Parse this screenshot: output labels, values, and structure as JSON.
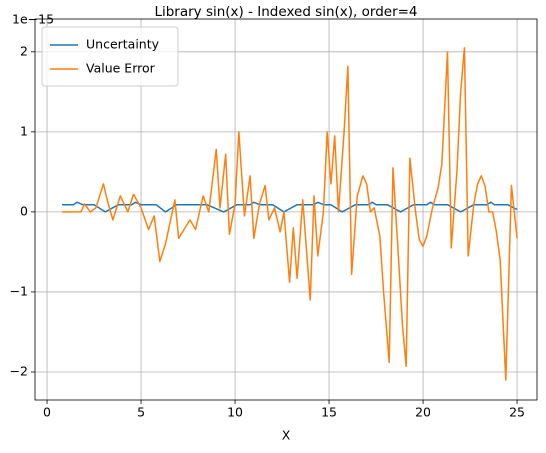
{
  "chart_data": {
    "type": "line",
    "title": "Library sin(x) - Indexed sin(x), order=4",
    "x_label": "X",
    "y_offset_text": "1e−15",
    "xlim": [
      -0.64,
      26.06
    ],
    "ylim": [
      -2.35,
      2.41
    ],
    "xticks": [
      0,
      5,
      10,
      15,
      20,
      25
    ],
    "yticks": [
      {
        "value": -2,
        "label": "−2"
      },
      {
        "value": -1,
        "label": "−1"
      },
      0,
      1,
      2
    ],
    "grid": true,
    "legend": "upper left",
    "series": [
      {
        "name": "Uncertainty",
        "color": "#1f77b4",
        "x": [
          0.8,
          1.4,
          1.6,
          1.9,
          2.5,
          3.1,
          3.8,
          4.5,
          4.7,
          5.0,
          5.8,
          6.3,
          6.9,
          7.6,
          7.9,
          8.5,
          9.4,
          10.1,
          10.8,
          11.0,
          11.3,
          12.0,
          12.6,
          13.3,
          14.2,
          14.4,
          14.7,
          15.1,
          15.7,
          16.4,
          17.1,
          17.3,
          17.5,
          18.1,
          18.8,
          19.5,
          20.2,
          20.4,
          20.6,
          21.3,
          22.0,
          22.7,
          23.4,
          23.6,
          23.8,
          24.5,
          25.0
        ],
        "values": [
          0.09,
          0.09,
          0.12,
          0.09,
          0.09,
          0.0,
          0.09,
          0.09,
          0.12,
          0.09,
          0.09,
          0.0,
          0.09,
          0.09,
          0.09,
          0.09,
          0.0,
          0.09,
          0.09,
          0.12,
          0.09,
          0.09,
          0.0,
          0.09,
          0.09,
          0.12,
          0.09,
          0.09,
          0.0,
          0.09,
          0.09,
          0.12,
          0.09,
          0.09,
          0.0,
          0.09,
          0.09,
          0.12,
          0.09,
          0.09,
          0.0,
          0.09,
          0.09,
          0.12,
          0.09,
          0.09,
          0.03
        ]
      },
      {
        "name": "Value Error",
        "color": "#ff7f0e",
        "x": [
          0.8,
          1.2,
          1.5,
          1.8,
          2.0,
          2.3,
          2.6,
          3.0,
          3.2,
          3.5,
          3.9,
          4.3,
          4.6,
          5.0,
          5.4,
          5.7,
          6.0,
          6.3,
          6.8,
          7.0,
          7.6,
          7.9,
          8.3,
          8.6,
          9.0,
          9.2,
          9.5,
          9.7,
          10.0,
          10.2,
          10.5,
          10.8,
          11.0,
          11.3,
          11.6,
          11.8,
          12.1,
          12.4,
          12.6,
          12.9,
          13.1,
          13.3,
          13.6,
          14.0,
          14.2,
          14.4,
          14.7,
          14.9,
          15.1,
          15.3,
          15.5,
          15.8,
          16.0,
          16.2,
          16.5,
          16.8,
          17.0,
          17.2,
          17.4,
          17.7,
          17.9,
          18.2,
          18.4,
          18.7,
          18.9,
          19.1,
          19.3,
          19.6,
          19.8,
          20.0,
          20.2,
          20.5,
          20.8,
          21.0,
          21.3,
          21.5,
          21.8,
          22.0,
          22.2,
          22.4,
          22.7,
          22.9,
          23.1,
          23.3,
          23.5,
          23.7,
          23.9,
          24.1,
          24.2,
          24.4,
          24.7,
          25.0
        ],
        "values": [
          0,
          0,
          0,
          0,
          0.1,
          0,
          0.05,
          0.35,
          0.15,
          -0.1,
          0.2,
          0,
          0.22,
          0.05,
          -0.22,
          -0.05,
          -0.62,
          -0.4,
          0.15,
          -0.33,
          -0.1,
          -0.22,
          0.2,
          0,
          0.78,
          0.05,
          0.72,
          -0.28,
          0.1,
          1.0,
          -0.05,
          0.45,
          -0.33,
          0.1,
          0.33,
          -0.1,
          0.05,
          -0.25,
          0,
          -0.88,
          -0.2,
          -0.83,
          0.15,
          -1.1,
          0.2,
          -0.55,
          0,
          1.0,
          0.35,
          0.95,
          0,
          1.0,
          1.82,
          -0.78,
          0.2,
          0.45,
          0.35,
          0,
          0.05,
          -0.3,
          -1.0,
          -1.88,
          0.55,
          -0.6,
          -1.4,
          -1.93,
          0.67,
          0,
          -0.35,
          -0.43,
          -0.3,
          0.05,
          0.3,
          0.6,
          2.0,
          -0.45,
          0.5,
          1.5,
          2.05,
          -0.55,
          0.1,
          0.35,
          0.45,
          0.32,
          0,
          0,
          -0.25,
          -0.6,
          -1.1,
          -2.1,
          0.33,
          -0.33
        ]
      }
    ]
  }
}
